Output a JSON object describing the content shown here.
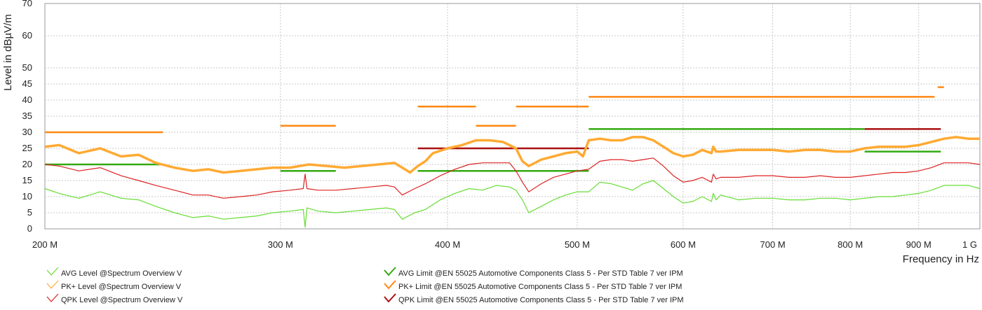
{
  "chart_data": {
    "type": "line",
    "xlabel": "Frequency in Hz",
    "ylabel": "Level in dBµV/m",
    "x_scale": "log",
    "xlim": [
      200000000,
      1000000000
    ],
    "ylim": [
      0,
      70
    ],
    "grid": true,
    "legend_position": "bottom",
    "y_ticks": [
      0,
      5,
      10,
      15,
      20,
      25,
      30,
      35,
      40,
      45,
      50,
      60,
      70
    ],
    "x_ticks": [
      {
        "value": 200000000,
        "label": "200 M"
      },
      {
        "value": 300000000,
        "label": "300 M"
      },
      {
        "value": 400000000,
        "label": "400 M"
      },
      {
        "value": 500000000,
        "label": "500 M"
      },
      {
        "value": 600000000,
        "label": "600 M"
      },
      {
        "value": 700000000,
        "label": "700 M"
      },
      {
        "value": 800000000,
        "label": "800 M"
      },
      {
        "value": 900000000,
        "label": "900 M"
      },
      {
        "value": 1000000000,
        "label": "1 G"
      }
    ],
    "series": [
      {
        "name": "AVG Level @Spectrum Overview V",
        "kind": "measurement",
        "color": "#66dd33",
        "x": [
          200000000.0,
          205000000.0,
          212000000.0,
          220000000.0,
          228000000.0,
          235000000.0,
          242000000.0,
          250000000.0,
          258000000.0,
          265000000.0,
          272000000.0,
          280000000.0,
          288000000.0,
          296000000.0,
          305000000.0,
          312000000.0,
          313000000.0,
          314000000.0,
          320000000.0,
          330000000.0,
          340000000.0,
          350000000.0,
          360000000.0,
          365000000.0,
          370000000.0,
          378000000.0,
          385000000.0,
          395000000.0,
          405000000.0,
          415000000.0,
          425000000.0,
          435000000.0,
          445000000.0,
          450000000.0,
          455000000.0,
          460000000.0,
          470000000.0,
          480000000.0,
          490000000.0,
          500000000.0,
          510000000.0,
          520000000.0,
          530000000.0,
          540000000.0,
          550000000.0,
          560000000.0,
          570000000.0,
          580000000.0,
          590000000.0,
          600000000.0,
          610000000.0,
          620000000.0,
          630000000.0,
          632000000.0,
          635000000.0,
          640000000.0,
          660000000.0,
          680000000.0,
          700000000.0,
          720000000.0,
          740000000.0,
          760000000.0,
          780000000.0,
          800000000.0,
          820000000.0,
          840000000.0,
          860000000.0,
          880000000.0,
          900000000.0,
          920000000.0,
          940000000.0,
          960000000.0,
          980000000.0,
          1000000000.0
        ],
        "y": [
          12.5,
          11,
          9.5,
          11.5,
          9.5,
          9,
          7,
          5,
          3.5,
          4,
          3,
          3.5,
          4,
          5,
          5.5,
          6,
          0.5,
          6.5,
          5.5,
          5,
          5.5,
          6,
          6.5,
          6,
          3,
          5,
          6,
          9,
          11,
          12.5,
          12,
          13.5,
          13,
          12,
          9,
          5,
          7,
          9,
          10.5,
          11.5,
          11.5,
          14.5,
          14,
          13,
          12,
          14,
          15,
          12.5,
          10,
          8,
          8.5,
          10,
          8.5,
          11,
          9,
          10.5,
          9,
          9.5,
          9.5,
          9,
          9,
          9.5,
          9.5,
          9,
          9.5,
          10,
          10,
          10.5,
          11,
          12,
          13.5,
          13.5,
          13.5,
          12.5
        ]
      },
      {
        "name": "PK+ Level @Spectrum Overview V",
        "kind": "measurement",
        "color": "#ffaa33",
        "x": [
          200000000.0,
          205000000.0,
          212000000.0,
          220000000.0,
          228000000.0,
          235000000.0,
          242000000.0,
          250000000.0,
          258000000.0,
          265000000.0,
          272000000.0,
          280000000.0,
          288000000.0,
          296000000.0,
          305000000.0,
          315000000.0,
          325000000.0,
          335000000.0,
          345000000.0,
          355000000.0,
          365000000.0,
          370000000.0,
          375000000.0,
          380000000.0,
          385000000.0,
          390000000.0,
          400000000.0,
          410000000.0,
          420000000.0,
          430000000.0,
          440000000.0,
          450000000.0,
          455000000.0,
          460000000.0,
          470000000.0,
          480000000.0,
          490000000.0,
          500000000.0,
          505000000.0,
          510000000.0,
          520000000.0,
          530000000.0,
          540000000.0,
          550000000.0,
          560000000.0,
          570000000.0,
          580000000.0,
          590000000.0,
          600000000.0,
          610000000.0,
          620000000.0,
          630000000.0,
          632000000.0,
          635000000.0,
          640000000.0,
          660000000.0,
          680000000.0,
          700000000.0,
          720000000.0,
          740000000.0,
          760000000.0,
          780000000.0,
          800000000.0,
          820000000.0,
          840000000.0,
          860000000.0,
          880000000.0,
          900000000.0,
          920000000.0,
          940000000.0,
          960000000.0,
          980000000.0,
          1000000000.0
        ],
        "y": [
          25.5,
          26,
          23.5,
          25,
          22.5,
          23,
          20.5,
          19,
          18,
          18.5,
          17.5,
          18,
          18.5,
          19,
          19,
          20,
          19.5,
          19,
          19.5,
          20,
          20.5,
          19,
          17.5,
          19.5,
          21,
          23.5,
          25,
          26,
          27.5,
          27.5,
          27,
          25,
          21,
          19.5,
          21.5,
          22.5,
          23.5,
          24,
          22.5,
          27.5,
          28,
          27.5,
          27.5,
          28.5,
          28.5,
          27.5,
          25.5,
          23.5,
          22.5,
          23,
          24.5,
          23.5,
          25.5,
          24,
          24,
          24.5,
          24.5,
          24.5,
          24,
          24.5,
          24.5,
          24,
          24,
          25,
          25.5,
          25.5,
          25.5,
          26,
          27,
          28,
          28.5,
          28,
          28
        ]
      },
      {
        "name": "QPK Level @Spectrum Overview V",
        "kind": "measurement",
        "color": "#dd2222",
        "x": [
          200000000.0,
          205000000.0,
          212000000.0,
          220000000.0,
          228000000.0,
          235000000.0,
          242000000.0,
          250000000.0,
          258000000.0,
          265000000.0,
          272000000.0,
          280000000.0,
          288000000.0,
          296000000.0,
          305000000.0,
          312000000.0,
          313000000.0,
          314000000.0,
          320000000.0,
          330000000.0,
          340000000.0,
          350000000.0,
          360000000.0,
          365000000.0,
          370000000.0,
          378000000.0,
          385000000.0,
          395000000.0,
          405000000.0,
          415000000.0,
          425000000.0,
          435000000.0,
          445000000.0,
          450000000.0,
          455000000.0,
          460000000.0,
          470000000.0,
          480000000.0,
          490000000.0,
          500000000.0,
          510000000.0,
          520000000.0,
          530000000.0,
          540000000.0,
          550000000.0,
          560000000.0,
          570000000.0,
          580000000.0,
          590000000.0,
          600000000.0,
          610000000.0,
          620000000.0,
          630000000.0,
          632000000.0,
          635000000.0,
          640000000.0,
          660000000.0,
          680000000.0,
          700000000.0,
          720000000.0,
          740000000.0,
          760000000.0,
          780000000.0,
          800000000.0,
          820000000.0,
          840000000.0,
          860000000.0,
          880000000.0,
          900000000.0,
          920000000.0,
          940000000.0,
          960000000.0,
          980000000.0,
          1000000000.0
        ],
        "y": [
          20,
          19.5,
          18,
          19,
          16.5,
          15,
          13.5,
          12,
          10.5,
          10.5,
          9.5,
          10,
          10.5,
          11.5,
          12,
          12.5,
          17,
          12.5,
          12,
          12,
          12.5,
          13,
          13.5,
          13,
          10.5,
          12.5,
          14,
          16.5,
          18.5,
          20,
          20.5,
          20.5,
          20.5,
          18,
          14.5,
          11.5,
          14,
          16,
          17,
          18,
          18.5,
          21,
          21.5,
          21.5,
          21,
          21.5,
          22,
          19.5,
          16.5,
          14.5,
          15,
          16,
          14.5,
          17,
          15.5,
          16,
          16,
          16.5,
          16.5,
          16,
          16,
          16.5,
          16,
          16,
          16.5,
          17,
          17.5,
          17.5,
          18,
          19,
          20.5,
          20.5,
          20.5,
          20
        ]
      },
      {
        "name": "AVG Limit @EN 55025 Automotive Components Class 5 - Per STD Table 7 ver IPM",
        "kind": "limit",
        "color": "#33aa11",
        "segments": [
          {
            "x": [
              200000000.0,
              245000000.0
            ],
            "y": 20
          },
          {
            "x": [
              300000000.0,
              330000000.0
            ],
            "y": 18
          },
          {
            "x": [
              380000000.0,
              510000000.0
            ],
            "y": 18
          },
          {
            "x": [
              510000000.0,
              820000000.0
            ],
            "y": 31
          },
          {
            "x": [
              820000000.0,
              935000000.0
            ],
            "y": 24
          }
        ]
      },
      {
        "name": "PK+ Limit @EN 55025 Automotive Components Class 5 - Per STD Table 7 ver IPM",
        "kind": "limit",
        "color": "#ff8811",
        "segments": [
          {
            "x": [
              200000000.0,
              245000000.0
            ],
            "y": 30
          },
          {
            "x": [
              300000000.0,
              330000000.0
            ],
            "y": 32
          },
          {
            "x": [
              380000000.0,
              420000000.0
            ],
            "y": 38
          },
          {
            "x": [
              420000000.0,
              450000000.0
            ],
            "y": 32
          },
          {
            "x": [
              450000000.0,
              510000000.0
            ],
            "y": 38
          },
          {
            "x": [
              510000000.0,
              925000000.0
            ],
            "y": 41
          },
          {
            "x": [
              930000000.0,
              940000000.0
            ],
            "y": 44
          }
        ]
      },
      {
        "name": "QPK Limit @EN 55025 Automotive Components Class 5 - Per STD Table 7 ver IPM",
        "kind": "limit",
        "color": "#aa1111",
        "segments": [
          {
            "x": [
              380000000.0,
              510000000.0
            ],
            "y": 25
          },
          {
            "x": [
              820000000.0,
              935000000.0
            ],
            "y": 31
          }
        ]
      }
    ]
  }
}
